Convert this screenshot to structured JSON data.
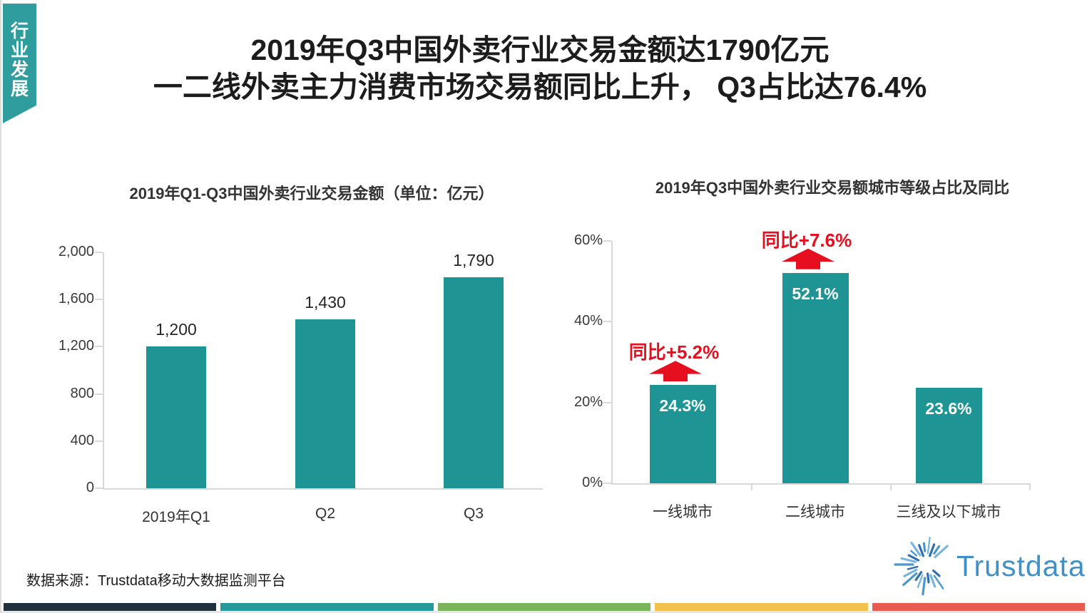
{
  "tab": {
    "label": "行业发展",
    "color": "#2f9d9d"
  },
  "title": {
    "line1": "2019年Q3中国外卖行业交易金额达1790亿元",
    "line2": "一二线外卖主力消费市场交易额同比上升， Q3占比达76.4%"
  },
  "chart_data": [
    {
      "type": "bar",
      "title": "2019年Q1-Q3中国外卖行业交易金额（单位：亿元）",
      "categories": [
        "2019年Q1",
        "Q2",
        "Q3"
      ],
      "values": [
        1200,
        1430,
        1790
      ],
      "value_labels": [
        "1,200",
        "1,430",
        "1,790"
      ],
      "xlabel": "",
      "ylabel": "",
      "ylim": [
        0,
        2000
      ],
      "yticks": [
        0,
        400,
        800,
        1200,
        1600,
        2000
      ],
      "ytick_labels": [
        "0",
        "400",
        "800",
        "1,200",
        "1,600",
        "2,000"
      ],
      "bar_color": "#1f9494",
      "grid": false,
      "legend": "none",
      "value_label_position": "above"
    },
    {
      "type": "bar",
      "title": "2019年Q3中国外卖行业交易额城市等级占比及同比",
      "categories": [
        "一线城市",
        "二线城市",
        "三线及以下城市"
      ],
      "values": [
        24.3,
        52.1,
        23.6
      ],
      "value_labels": [
        "24.3%",
        "52.1%",
        "23.6%"
      ],
      "xlabel": "",
      "ylabel": "",
      "ylim": [
        0,
        60
      ],
      "yticks": [
        0,
        20,
        40,
        60
      ],
      "ytick_labels": [
        "0%",
        "20%",
        "40%",
        "60%"
      ],
      "bar_color": "#1f9494",
      "grid": false,
      "legend": "none",
      "value_label_position": "inside",
      "annotations": [
        {
          "category_index": 0,
          "label": "同比+5.2%",
          "arrow": "up",
          "color": "#e60f1f"
        },
        {
          "category_index": 1,
          "label": "同比+7.6%",
          "arrow": "up",
          "color": "#e60f1f"
        }
      ]
    }
  ],
  "source": {
    "label": "数据来源：Trustdata移动大数据监测平台"
  },
  "logo": {
    "text": "Trustdata",
    "color": "#4090c8"
  },
  "footer_strip": {
    "colors": [
      "#20303f",
      "#27999a",
      "#7cb45c",
      "#f2c14e",
      "#e85b50"
    ]
  },
  "colors": {
    "bar_teal": "#1f9494",
    "annotation_red": "#e60f1f",
    "axis_gray": "#d9d9d9",
    "title_black": "#1c1c1c"
  }
}
